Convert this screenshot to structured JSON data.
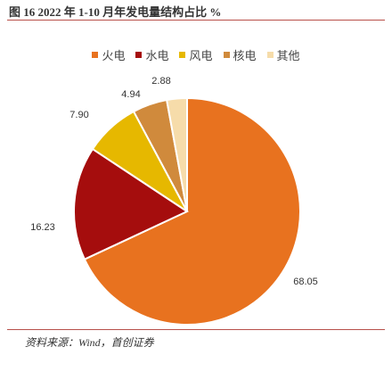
{
  "figure": {
    "title": "图 16 2022 年 1-10 月年发电量结构占比 %",
    "source": "资料来源：Wind，首创证券"
  },
  "chart_data": {
    "type": "pie",
    "title": "",
    "categories": [
      "火电",
      "水电",
      "风电",
      "核电",
      "其他"
    ],
    "values": [
      68.05,
      16.23,
      7.9,
      4.94,
      2.88
    ],
    "labels": [
      "68.05",
      "16.23",
      "7.90",
      "4.94",
      "2.88"
    ],
    "colors": [
      "#e8721f",
      "#a50d0d",
      "#e6b800",
      "#d08a3c",
      "#f6dcaa"
    ],
    "legend_position": "top-center"
  }
}
